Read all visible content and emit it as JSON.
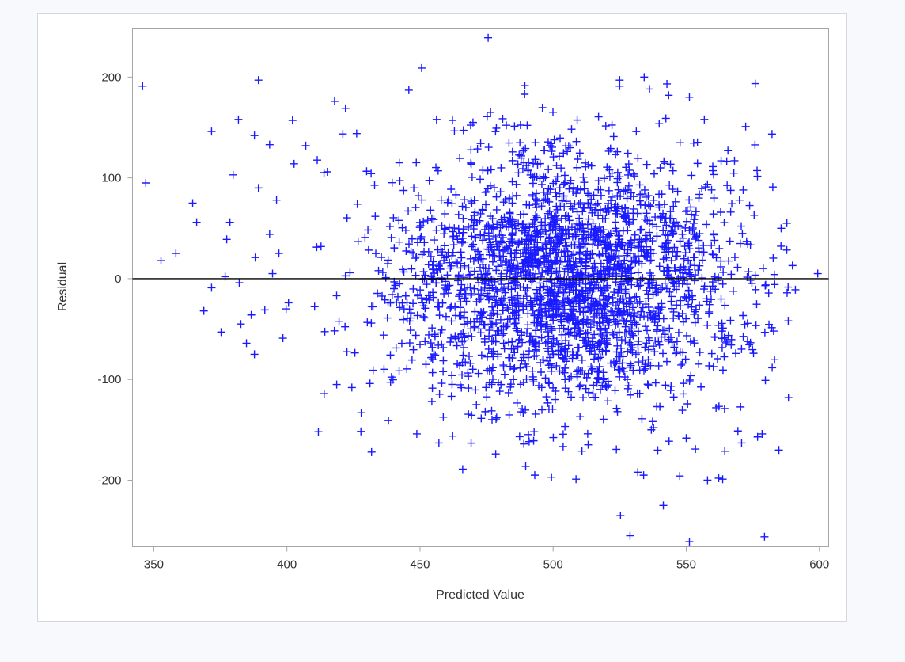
{
  "chart_data": {
    "type": "scatter",
    "title": "",
    "xlabel": "Predicted Value",
    "ylabel": "Residual",
    "xlim": [
      342,
      603.5
    ],
    "ylim": [
      -266,
      248.6
    ],
    "xticks": [
      350,
      400,
      450,
      500,
      550,
      600
    ],
    "yticks": [
      -200,
      -100,
      0,
      100,
      200
    ],
    "grid": false,
    "legend": "none",
    "reference_line": {
      "y": 0,
      "color": "#000000"
    },
    "marker": "plus",
    "marker_color": "#0000ff",
    "points": [
      [
        345.8,
        191
      ],
      [
        347.0,
        95
      ],
      [
        352.7,
        18
      ],
      [
        358.3,
        25
      ],
      [
        364.6,
        75
      ],
      [
        366.1,
        56
      ],
      [
        368.8,
        -32
      ],
      [
        371.7,
        146
      ],
      [
        371.7,
        -9
      ],
      [
        375.3,
        -53
      ],
      [
        376.8,
        2
      ],
      [
        377.4,
        39
      ],
      [
        378.6,
        56
      ],
      [
        379.8,
        103
      ],
      [
        381.8,
        158
      ],
      [
        382.1,
        -4
      ],
      [
        382.7,
        -45
      ],
      [
        384.8,
        -64
      ],
      [
        386.6,
        -36
      ],
      [
        387.8,
        142
      ],
      [
        387.8,
        -75
      ],
      [
        388.1,
        21
      ],
      [
        389.3,
        197
      ],
      [
        389.3,
        90
      ],
      [
        391.7,
        -31
      ],
      [
        393.5,
        133
      ],
      [
        393.5,
        44
      ],
      [
        394.6,
        5
      ],
      [
        396.1,
        78
      ],
      [
        397.0,
        25
      ],
      [
        398.5,
        -59
      ],
      [
        399.7,
        -30
      ],
      [
        400.6,
        -24
      ],
      [
        402.1,
        157
      ],
      [
        402.7,
        114
      ],
      [
        407.1,
        132
      ],
      [
        415.2,
        106
      ],
      [
        417.9,
        176
      ],
      [
        422.0,
        169
      ],
      [
        426.2,
        144
      ],
      [
        424.4,
        -108
      ],
      [
        414.0,
        -114
      ],
      [
        418.7,
        -105
      ],
      [
        431.2,
        -104
      ],
      [
        431.8,
        -172
      ],
      [
        436.3,
        -56
      ],
      [
        445.8,
        187
      ],
      [
        450.6,
        209
      ],
      [
        448.8,
        -154
      ],
      [
        457.1,
        -163
      ],
      [
        475.6,
        239
      ],
      [
        476.5,
        165
      ],
      [
        456.2,
        158
      ],
      [
        462.2,
        157
      ],
      [
        469.9,
        155
      ],
      [
        489.3,
        183
      ],
      [
        489.0,
        -164
      ],
      [
        493.1,
        -195
      ],
      [
        499.4,
        -197
      ],
      [
        508.6,
        -199
      ],
      [
        525.0,
        197
      ],
      [
        525.3,
        -235
      ],
      [
        528.9,
        -255
      ],
      [
        531.8,
        -192
      ],
      [
        541.4,
        -225
      ],
      [
        551.2,
        -261
      ],
      [
        551.2,
        180
      ],
      [
        558.0,
        -200
      ],
      [
        562.2,
        -198
      ],
      [
        563.7,
        -199
      ],
      [
        570.8,
        -163
      ],
      [
        576.8,
        -157
      ],
      [
        579.4,
        -256
      ],
      [
        584.8,
        -170
      ],
      [
        588.4,
        -118
      ],
      [
        587.8,
        55
      ],
      [
        589.9,
        13
      ],
      [
        591.0,
        -11
      ],
      [
        599.4,
        5
      ],
      [
        578.5,
        -154
      ],
      [
        575.5,
        63
      ],
      [
        556.8,
        158
      ],
      [
        543.4,
        182
      ],
      [
        534.2,
        200
      ]
    ],
    "dense_cloud": {
      "n": 2600,
      "x_mean": 505,
      "x_sd": 33,
      "x_min": 400,
      "x_max": 590,
      "y_mean": 0,
      "y_sd": 62,
      "seed": 7
    }
  }
}
